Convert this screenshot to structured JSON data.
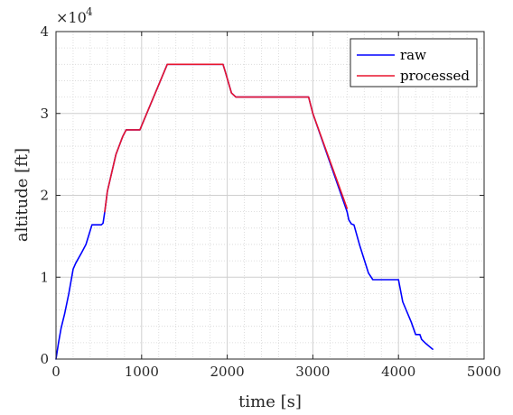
{
  "chart_data": {
    "type": "line",
    "xlabel": "time [s]",
    "ylabel": "altitude [ft]",
    "xlim": [
      0,
      5000
    ],
    "ylim": [
      0,
      40000
    ],
    "xticks": [
      0,
      1000,
      2000,
      3000,
      4000,
      5000
    ],
    "xtick_labels": [
      "0",
      "1000",
      "2000",
      "3000",
      "4000",
      "5000"
    ],
    "yticks": [
      0,
      10000,
      20000,
      30000,
      40000
    ],
    "ytick_labels": [
      "0",
      "1",
      "2",
      "3",
      "4"
    ],
    "y_exponent_label": "×10",
    "y_exponent_power": "4",
    "grid": true,
    "minor_grid": true,
    "legend_position": "top-right",
    "colors": {
      "raw": "#0000ff",
      "processed": "#e8152e"
    },
    "series": [
      {
        "name": "raw",
        "x": [
          0,
          30,
          60,
          100,
          150,
          200,
          230,
          300,
          350,
          420,
          530,
          550,
          570,
          600,
          700,
          780,
          820,
          980,
          1300,
          1950,
          1980,
          2050,
          2100,
          2950,
          3000,
          3400,
          3420,
          3450,
          3480,
          3550,
          3650,
          3700,
          4000,
          4050,
          4150,
          4200,
          4250,
          4270,
          4320,
          4400
        ],
        "y": [
          0,
          2000,
          3800,
          5500,
          8000,
          11000,
          11700,
          13000,
          14000,
          16400,
          16400,
          16600,
          18000,
          20500,
          25000,
          27200,
          28000,
          28000,
          36000,
          36000,
          35000,
          32500,
          32000,
          32000,
          30000,
          18000,
          17000,
          16500,
          16400,
          13800,
          10500,
          9700,
          9700,
          7000,
          4500,
          3000,
          3000,
          2400,
          1900,
          1200
        ]
      },
      {
        "name": "processed",
        "x": [
          570,
          600,
          700,
          780,
          820,
          980,
          1300,
          1950,
          1980,
          2050,
          2100,
          2950,
          3000,
          3400
        ],
        "y": [
          18000,
          20500,
          25000,
          27200,
          28000,
          28000,
          36000,
          36000,
          35000,
          32500,
          32000,
          32000,
          30000,
          18400
        ]
      }
    ]
  }
}
